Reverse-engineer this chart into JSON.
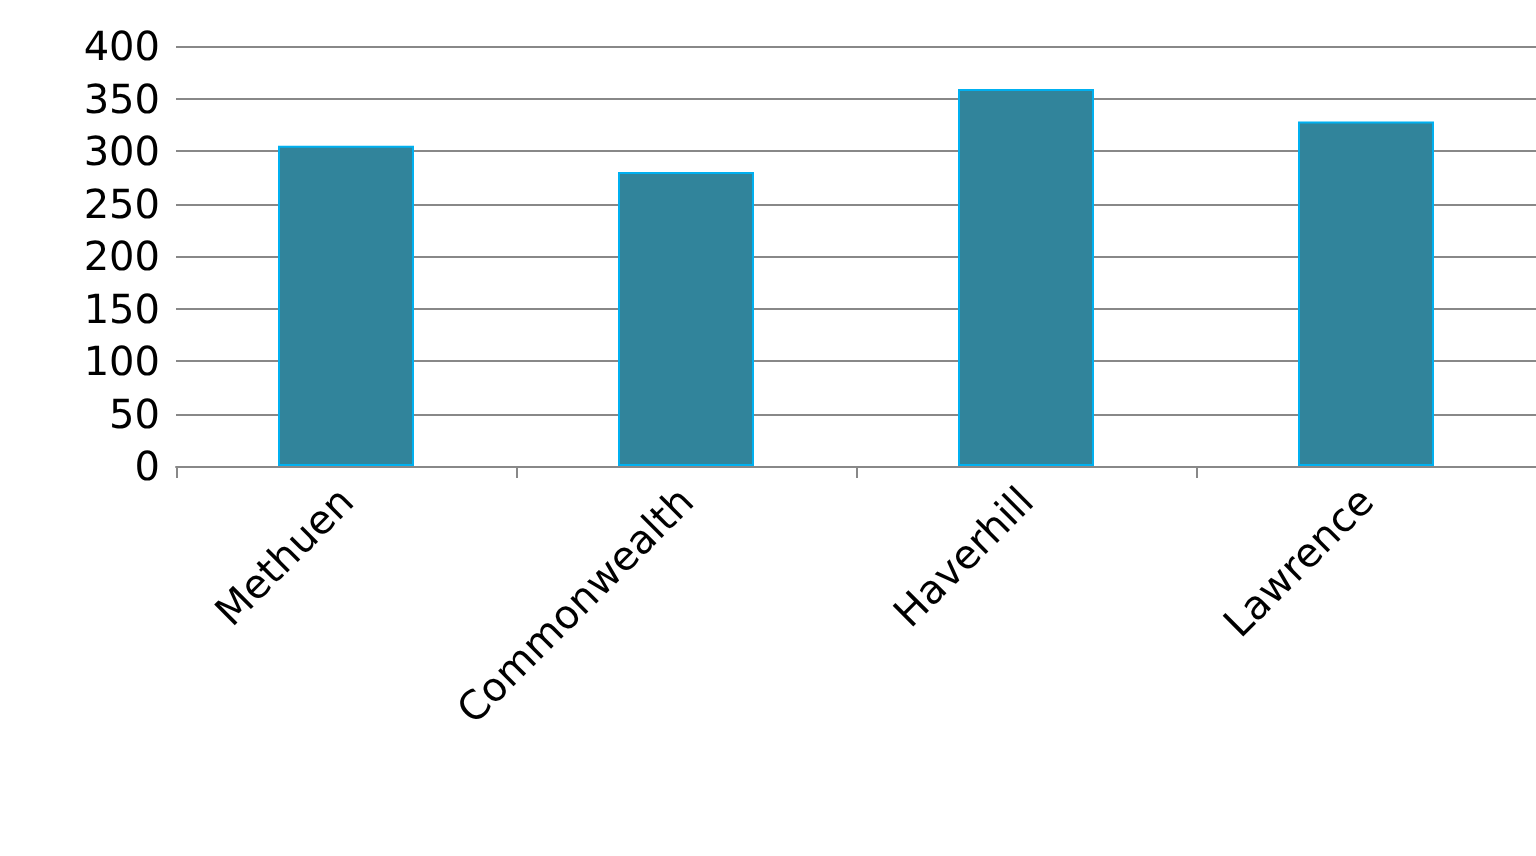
{
  "chart_data": {
    "type": "bar",
    "categories": [
      "Methuen",
      "Commonwealth",
      "Haverhill",
      "Lawrence"
    ],
    "values": [
      305,
      280,
      359,
      328
    ],
    "color": "#31849b",
    "ylim": [
      0,
      400
    ],
    "yticks": [
      0,
      50,
      100,
      150,
      200,
      250,
      300,
      350,
      400
    ],
    "grid": "y"
  }
}
